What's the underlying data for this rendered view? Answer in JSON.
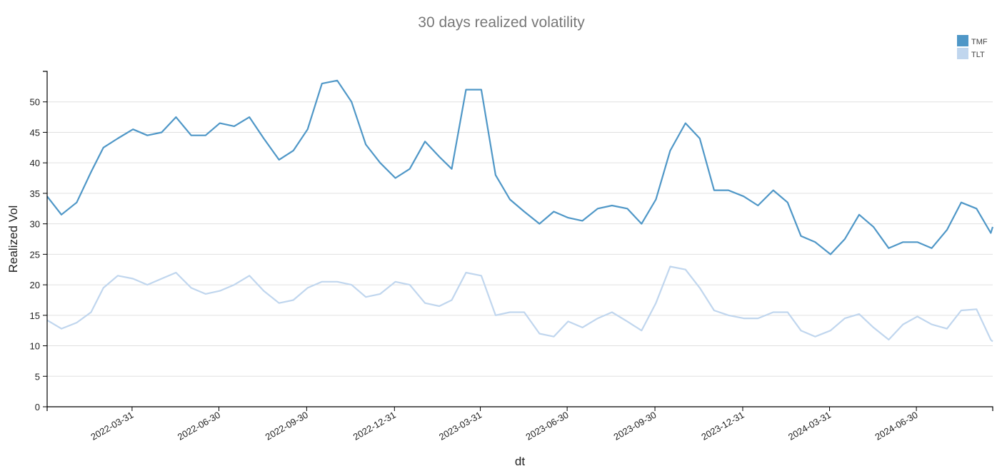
{
  "chart_data": {
    "type": "line",
    "title": "30 days realized volatility",
    "xlabel": "dt",
    "ylabel": "Realized Vol",
    "xlim": [
      "2022-01-01",
      "2024-09-18"
    ],
    "ylim": [
      0,
      55
    ],
    "yticks": [
      0,
      5,
      10,
      15,
      20,
      25,
      30,
      35,
      40,
      45,
      50
    ],
    "xticks": [
      "2022-03-31",
      "2022-06-30",
      "2022-09-30",
      "2022-12-31",
      "2023-03-31",
      "2023-06-30",
      "2023-09-30",
      "2023-12-31",
      "2024-03-31",
      "2024-06-30"
    ],
    "grid": "horizontal",
    "legend_position": "top-right",
    "x": [
      "2022-01-01",
      "2022-01-16",
      "2022-02-01",
      "2022-02-16",
      "2022-03-01",
      "2022-03-16",
      "2022-04-01",
      "2022-04-16",
      "2022-05-01",
      "2022-05-16",
      "2022-06-01",
      "2022-06-16",
      "2022-07-01",
      "2022-07-16",
      "2022-08-01",
      "2022-08-16",
      "2022-09-01",
      "2022-09-16",
      "2022-10-01",
      "2022-10-16",
      "2022-11-01",
      "2022-11-16",
      "2022-12-01",
      "2022-12-16",
      "2023-01-01",
      "2023-01-16",
      "2023-02-01",
      "2023-02-16",
      "2023-03-01",
      "2023-03-16",
      "2023-04-01",
      "2023-04-16",
      "2023-05-01",
      "2023-05-16",
      "2023-06-01",
      "2023-06-16",
      "2023-07-01",
      "2023-07-16",
      "2023-08-01",
      "2023-08-16",
      "2023-09-01",
      "2023-09-16",
      "2023-10-01",
      "2023-10-16",
      "2023-11-01",
      "2023-11-16",
      "2023-12-01",
      "2023-12-16",
      "2024-01-01",
      "2024-01-16",
      "2024-02-01",
      "2024-02-16",
      "2024-03-01",
      "2024-03-16",
      "2024-04-01",
      "2024-04-16",
      "2024-05-01",
      "2024-05-16",
      "2024-06-01",
      "2024-06-16",
      "2024-07-01",
      "2024-07-16",
      "2024-08-01",
      "2024-08-16",
      "2024-09-01",
      "2024-09-16",
      "2024-09-18"
    ],
    "series": [
      {
        "name": "TMF",
        "color": "#4f97c7",
        "values": [
          34.5,
          31.5,
          33.5,
          38.5,
          42.5,
          44,
          45.5,
          44.5,
          45,
          47.5,
          44.5,
          44.5,
          46.5,
          46,
          47.5,
          44,
          40.5,
          42,
          45.5,
          53,
          53.5,
          50,
          43,
          40,
          37.5,
          39,
          43.5,
          41,
          39,
          52,
          52,
          38,
          34,
          32,
          30,
          32,
          31,
          30.5,
          32.5,
          33,
          32.5,
          30,
          34,
          42,
          46.5,
          44,
          35.5,
          35.5,
          34.5,
          33,
          35.5,
          33.5,
          28,
          27,
          25,
          27.5,
          31.5,
          29.5,
          26,
          27,
          27,
          26,
          29,
          33.5,
          32.5,
          28.5,
          29.5
        ]
      },
      {
        "name": "TLT",
        "color": "#c0d6ee",
        "values": [
          14.2,
          12.8,
          13.8,
          15.5,
          19.5,
          21.5,
          21,
          20,
          21,
          22,
          19.5,
          18.5,
          19,
          20,
          21.5,
          19,
          17,
          17.5,
          19.5,
          20.5,
          20.5,
          20,
          18,
          18.5,
          20.5,
          20,
          17,
          16.5,
          17.5,
          22,
          21.5,
          15,
          15.5,
          15.5,
          12,
          11.5,
          14,
          13,
          14.5,
          15.5,
          14,
          12.5,
          17,
          23,
          22.5,
          19.5,
          15.8,
          15,
          14.5,
          14.5,
          15.5,
          15.5,
          12.5,
          11.5,
          12.5,
          14.5,
          15.2,
          13,
          11,
          13.5,
          14.8,
          13.5,
          12.8,
          15.8,
          16,
          11,
          10.7
        ]
      }
    ]
  }
}
